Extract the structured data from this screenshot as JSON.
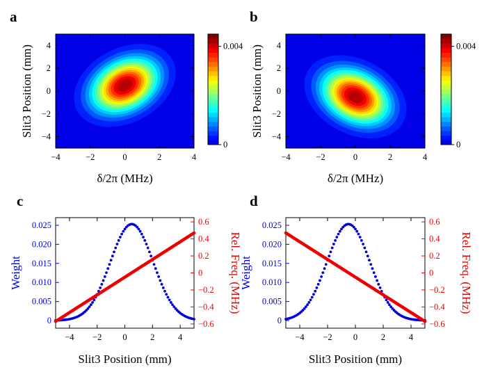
{
  "chart_data": [
    {
      "panel": "a",
      "type": "heatmap",
      "xlabel": "δ/2π (MHz)",
      "ylabel": "Slit3 Position (mm)",
      "xlim": [
        -4,
        4
      ],
      "ylim": [
        -5,
        5
      ],
      "x_ticks": [
        "−4",
        "−2",
        "0",
        "2",
        "4"
      ],
      "y_ticks": [
        "−4",
        "−2",
        "0",
        "2",
        "4"
      ],
      "colorbar": {
        "range": [
          0,
          0.0045
        ],
        "ticks": [
          "0",
          "0.004"
        ],
        "colormap": "jet"
      },
      "peak": {
        "x": 0.0,
        "y": 0.5,
        "value": 0.0045
      },
      "sigma_x": 1.25,
      "sigma_y": 1.55,
      "correlation": 0.3
    },
    {
      "panel": "b",
      "type": "heatmap",
      "xlabel": "δ/2π (MHz)",
      "ylabel": "Slit3 Position (mm)",
      "xlim": [
        -4,
        4
      ],
      "ylim": [
        -5,
        5
      ],
      "x_ticks": [
        "−4",
        "−2",
        "0",
        "2",
        "4"
      ],
      "y_ticks": [
        "−4",
        "−2",
        "0",
        "2",
        "4"
      ],
      "colorbar": {
        "range": [
          0,
          0.0045
        ],
        "ticks": [
          "0",
          "0.004"
        ],
        "colormap": "jet"
      },
      "peak": {
        "x": 0.0,
        "y": -0.5,
        "value": 0.0045
      },
      "sigma_x": 1.25,
      "sigma_y": 1.55,
      "correlation": -0.3
    },
    {
      "panel": "c",
      "type": "scatter",
      "xlabel": "Slit3 Position (mm)",
      "xlim": [
        -5,
        5
      ],
      "x_ticks": [
        "−4",
        "−2",
        "0",
        "2",
        "4"
      ],
      "y_left": {
        "label": "Weight",
        "color": "#0000dd",
        "lim": [
          -0.002,
          0.027
        ],
        "ticks": [
          "0",
          "0.005",
          "0.010",
          "0.015",
          "0.020",
          "0.025"
        ]
      },
      "y_right": {
        "label": "Rel. Freq. (MHz)",
        "color": "#ee0000",
        "lim": [
          -0.65,
          0.65
        ],
        "ticks": [
          "−0.6",
          "−0.4",
          "−0.2",
          "0",
          "0.2",
          "0.4",
          "0.6"
        ]
      },
      "series": [
        {
          "axis": "left",
          "kind": "gaussian",
          "center": 0.5,
          "peak": 0.0253,
          "sigma": 1.55,
          "x_from": -5,
          "x_to": 5,
          "points": 91
        },
        {
          "axis": "right",
          "kind": "linear",
          "x_start": -5,
          "y_start": -0.57,
          "x_end": 5,
          "y_end": 0.47,
          "x_from": -5,
          "x_to": 5,
          "points": 161
        }
      ]
    },
    {
      "panel": "d",
      "type": "scatter",
      "xlabel": "Slit3 Position (mm)",
      "xlim": [
        -5,
        5
      ],
      "x_ticks": [
        "−4",
        "−2",
        "0",
        "2",
        "4"
      ],
      "y_left": {
        "label": "Weight",
        "color": "#0000dd",
        "lim": [
          -0.002,
          0.027
        ],
        "ticks": [
          "0",
          "0.005",
          "0.010",
          "0.015",
          "0.020",
          "0.025"
        ]
      },
      "y_right": {
        "label": "Rel. Freq. (MHz)",
        "color": "#ee0000",
        "lim": [
          -0.65,
          0.65
        ],
        "ticks": [
          "−0.6",
          "−0.4",
          "−0.2",
          "0",
          "0.2",
          "0.4",
          "0.6"
        ]
      },
      "series": [
        {
          "axis": "left",
          "kind": "gaussian",
          "center": -0.5,
          "peak": 0.0253,
          "sigma": 1.55,
          "x_from": -5,
          "x_to": 5,
          "points": 91
        },
        {
          "axis": "right",
          "kind": "linear",
          "x_start": -5,
          "y_start": 0.47,
          "x_end": 5,
          "y_end": -0.57,
          "x_from": -5,
          "x_to": 5,
          "points": 161
        }
      ]
    }
  ]
}
